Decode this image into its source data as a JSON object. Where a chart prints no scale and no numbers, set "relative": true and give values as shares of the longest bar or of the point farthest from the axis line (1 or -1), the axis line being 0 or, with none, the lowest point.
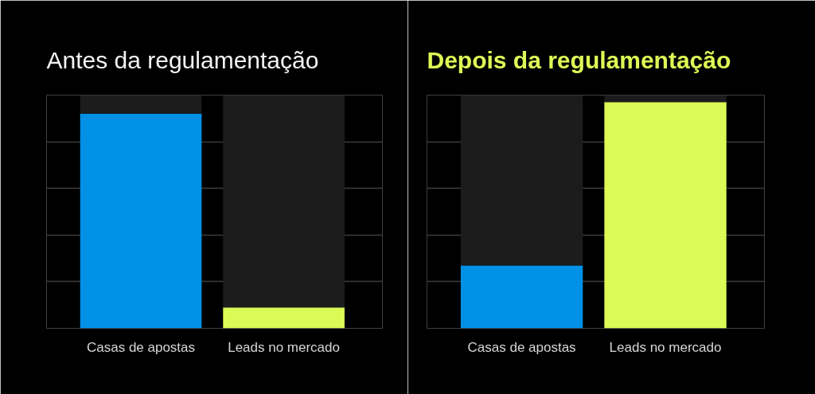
{
  "chart_data": [
    {
      "type": "bar",
      "title": "Antes da regulamentação",
      "categories": [
        "Casas de apostas",
        "Leads no mercado"
      ],
      "stacked": true,
      "relative": true,
      "grid": "y",
      "series": [
        {
          "colors": [
            "#0091e6",
            "#dcfa55"
          ],
          "values": [
            0.92,
            0.09
          ]
        },
        {
          "color": "#1c1c1c",
          "values": [
            0.08,
            0.91
          ]
        }
      ]
    },
    {
      "type": "bar",
      "title": "Depois da regulamentação",
      "categories": [
        "Casas de apostas",
        "Leads no mercado"
      ],
      "stacked": true,
      "relative": true,
      "grid": "y",
      "series": [
        {
          "colors": [
            "#0091e6",
            "#dcfa55"
          ],
          "values": [
            0.27,
            0.97
          ]
        },
        {
          "color": "#1c1c1c",
          "values": [
            0.73,
            0.03
          ]
        }
      ]
    }
  ]
}
